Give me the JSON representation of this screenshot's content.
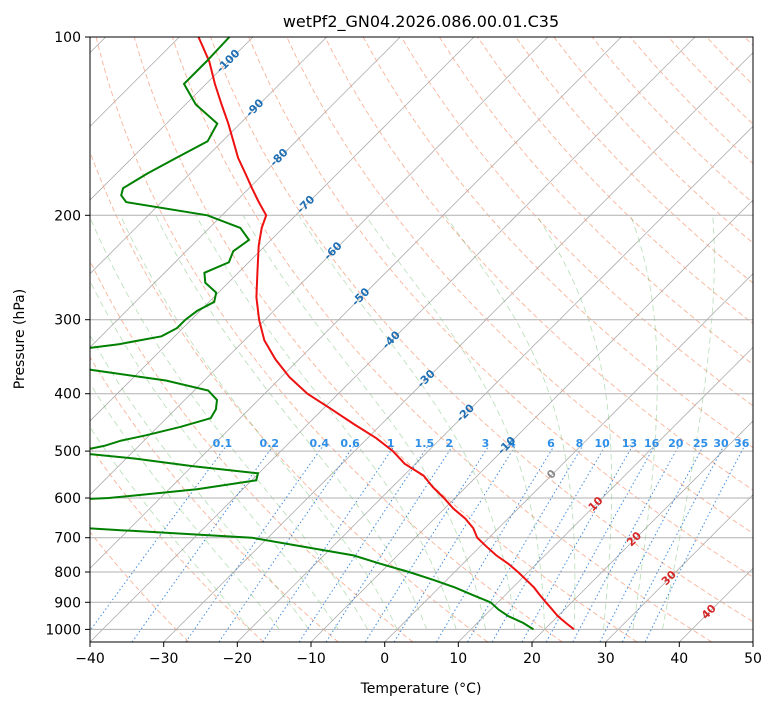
{
  "chart_data": {
    "type": "line",
    "title": "wetPf2_GN04.2026.086.00.01.C35",
    "xlabel": "Temperature (°C)",
    "ylabel": "Pressure (hPa)",
    "xlim": [
      -40,
      50
    ],
    "ylim": [
      1050,
      100
    ],
    "y_scale": "log",
    "x_ticks": [
      -40,
      -30,
      -20,
      -10,
      0,
      10,
      20,
      30,
      40,
      50
    ],
    "y_ticks": [
      100,
      200,
      300,
      400,
      500,
      600,
      700,
      800,
      900,
      1000
    ],
    "grid": true,
    "isotherm_labels": [
      {
        "text": "-100",
        "t": -100,
        "p": 110
      },
      {
        "text": "-90",
        "t": -90,
        "p": 132
      },
      {
        "text": "-80",
        "t": -80,
        "p": 160
      },
      {
        "text": "-70",
        "t": -70,
        "p": 192
      },
      {
        "text": "-60",
        "t": -60,
        "p": 230
      },
      {
        "text": "-50",
        "t": -50,
        "p": 275
      },
      {
        "text": "-40",
        "t": -40,
        "p": 325
      },
      {
        "text": "-30",
        "t": -30,
        "p": 378
      },
      {
        "text": "-20",
        "t": -20,
        "p": 432
      },
      {
        "text": "-10",
        "t": -10,
        "p": 490
      },
      {
        "text": "0",
        "t": 0,
        "p": 548
      },
      {
        "text": "10",
        "t": 10,
        "p": 615
      },
      {
        "text": "20",
        "t": 20,
        "p": 705
      },
      {
        "text": "30",
        "t": 30,
        "p": 820
      },
      {
        "text": "40",
        "t": 40,
        "p": 935
      }
    ],
    "mixing_ratio_labels": [
      "0.1",
      "0.2",
      "0.4",
      "0.6",
      "1",
      "1.5",
      "2",
      "3",
      "4",
      "6",
      "8",
      "10",
      "13",
      "16",
      "20",
      "25",
      "30",
      "36"
    ],
    "series": [
      {
        "name": "",
        "color": "#ee1111",
        "p": [
          1000,
          975,
          950,
          925,
          900,
          875,
          850,
          825,
          800,
          775,
          750,
          725,
          700,
          675,
          650,
          625,
          600,
          575,
          550,
          525,
          500,
          475,
          450,
          425,
          400,
          375,
          350,
          325,
          300,
          275,
          250,
          225,
          210,
          200,
          190,
          180,
          170,
          160,
          150,
          140,
          130,
          120,
          110,
          100
        ],
        "t": [
          24.0,
          22.0,
          20.0,
          18.3,
          16.5,
          14.7,
          12.9,
          10.8,
          8.6,
          6.2,
          3.4,
          0.9,
          -1.6,
          -3.4,
          -5.8,
          -8.8,
          -11.5,
          -14.5,
          -17.3,
          -21.5,
          -24.8,
          -28.9,
          -33.8,
          -38.8,
          -44.2,
          -48.9,
          -53.2,
          -57.3,
          -60.8,
          -64.2,
          -67.4,
          -70.9,
          -72.9,
          -74.0,
          -76.8,
          -79.6,
          -82.5,
          -85.6,
          -88.5,
          -91.6,
          -95.1,
          -98.8,
          -102.6,
          -107.4
        ]
      },
      {
        "name": "",
        "color": "#008000",
        "p": [
          1000,
          975,
          950,
          925,
          900,
          875,
          850,
          825,
          800,
          775,
          750,
          700,
          680,
          660,
          640,
          625,
          615,
          600,
          580,
          560,
          545,
          530,
          515,
          505,
          500,
          490,
          480,
          470,
          455,
          440,
          425,
          410,
          395,
          380,
          365,
          350,
          340,
          330,
          320,
          310,
          300,
          290,
          280,
          270,
          260,
          250,
          240,
          230,
          220,
          210,
          200,
          190,
          185,
          180,
          170,
          160,
          150,
          140,
          130,
          120,
          110,
          100
        ],
        "t": [
          18.5,
          16.2,
          13.3,
          11.0,
          9.0,
          5.6,
          2.2,
          -1.8,
          -6.2,
          -11.1,
          -16.0,
          -32.2,
          -51.0,
          -70.0,
          -80.5,
          -83.0,
          -76.0,
          -57.0,
          -46.2,
          -39.4,
          -40.1,
          -50.0,
          -58.6,
          -66.2,
          -67.5,
          -64.7,
          -63.1,
          -60.4,
          -56.9,
          -54.0,
          -54.5,
          -55.6,
          -58.1,
          -65.2,
          -76.5,
          -86.5,
          -83.8,
          -76.5,
          -71.8,
          -70.8,
          -70.8,
          -70.4,
          -69.3,
          -70.3,
          -73.1,
          -74.6,
          -72.7,
          -73.6,
          -73.0,
          -75.8,
          -82.0,
          -94.8,
          -96.4,
          -97.1,
          -95.8,
          -94.0,
          -92.0,
          -93.1,
          -98.6,
          -103.0,
          -103.0,
          -103.2
        ]
      }
    ]
  }
}
